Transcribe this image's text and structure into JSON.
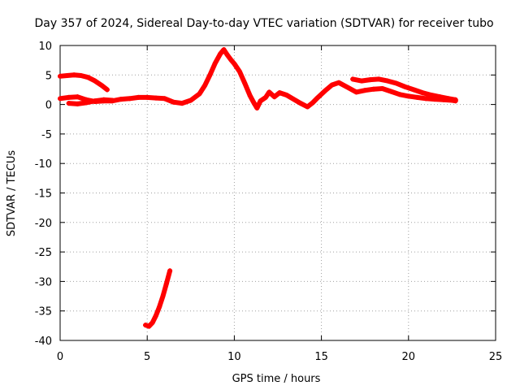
{
  "chart_data": {
    "type": "scatter",
    "title": "Day 357 of 2024, Sidereal Day-to-day VTEC variation (SDTVAR) for receiver tubo",
    "xlabel": "GPS time / hours",
    "ylabel": "SDTVAR / TECUs",
    "xlim": [
      0,
      25
    ],
    "ylim": [
      -40,
      10
    ],
    "xticks": [
      0,
      5,
      10,
      15,
      20,
      25
    ],
    "yticks": [
      -40,
      -35,
      -30,
      -25,
      -20,
      -15,
      -10,
      -5,
      0,
      5,
      10
    ],
    "xtick_labels": [
      "0",
      "5",
      "10",
      "15",
      "20",
      "25"
    ],
    "ytick_labels": [
      "-40",
      "-35",
      "-30",
      "-25",
      "-20",
      "-15",
      "-10",
      "-5",
      "0",
      "5",
      "10"
    ],
    "grid": true,
    "series_color": "#ff0000",
    "series": [
      {
        "name": "main-track",
        "x": [
          0.0,
          0.5,
          1.0,
          1.5,
          2.0,
          2.5,
          3.0,
          3.5,
          4.0,
          4.5,
          5.0,
          5.5,
          6.0,
          6.5,
          7.0,
          7.5,
          8.0,
          8.3,
          8.6,
          8.9,
          9.2,
          9.4,
          9.6,
          9.8,
          10.0,
          10.3,
          10.6,
          10.9,
          11.1,
          11.3,
          11.5,
          11.8,
          12.0,
          12.3,
          12.6,
          13.0,
          13.4,
          13.8,
          14.2,
          14.5,
          14.8,
          15.2,
          15.6,
          16.0,
          16.5,
          17.0,
          17.5,
          18.0,
          18.5,
          19.0,
          19.5,
          20.0,
          20.5,
          21.0,
          21.5,
          22.0,
          22.5,
          22.7
        ],
        "y": [
          1.0,
          1.2,
          1.3,
          0.8,
          0.5,
          0.6,
          0.6,
          0.9,
          1.0,
          1.2,
          1.2,
          1.1,
          1.0,
          0.4,
          0.2,
          0.7,
          1.8,
          3.2,
          5.0,
          7.0,
          8.6,
          9.3,
          8.4,
          7.6,
          6.9,
          5.6,
          3.6,
          1.5,
          0.4,
          -0.6,
          0.6,
          1.2,
          2.1,
          1.3,
          2.0,
          1.6,
          0.9,
          0.2,
          -0.4,
          0.3,
          1.2,
          2.3,
          3.3,
          3.7,
          2.9,
          2.1,
          2.4,
          2.6,
          2.7,
          2.2,
          1.7,
          1.4,
          1.2,
          1.0,
          0.9,
          0.8,
          0.7,
          0.6
        ]
      },
      {
        "name": "upper-track-early",
        "x": [
          0.0,
          0.4,
          0.8,
          1.2,
          1.6,
          2.0,
          2.4,
          2.7
        ],
        "y": [
          4.8,
          4.9,
          5.0,
          4.9,
          4.6,
          4.0,
          3.2,
          2.5
        ]
      },
      {
        "name": "lower-secondary-track",
        "x": [
          0.5,
          1.0,
          1.5,
          2.0,
          2.5,
          3.0
        ],
        "y": [
          0.2,
          0.1,
          0.3,
          0.6,
          0.8,
          0.7
        ]
      },
      {
        "name": "upper-track-late",
        "x": [
          16.8,
          17.3,
          17.8,
          18.3,
          18.8,
          19.3,
          19.8,
          20.3,
          20.8,
          21.3,
          21.8,
          22.3,
          22.7
        ],
        "y": [
          4.3,
          4.0,
          4.2,
          4.3,
          4.0,
          3.6,
          3.0,
          2.5,
          2.0,
          1.6,
          1.3,
          1.0,
          0.8
        ]
      },
      {
        "name": "outlier-track",
        "x": [
          4.9,
          5.1,
          5.3,
          5.5,
          5.7,
          5.9,
          6.1,
          6.3
        ],
        "y": [
          -37.4,
          -37.6,
          -37.0,
          -35.8,
          -34.3,
          -32.5,
          -30.4,
          -28.2
        ]
      }
    ]
  }
}
